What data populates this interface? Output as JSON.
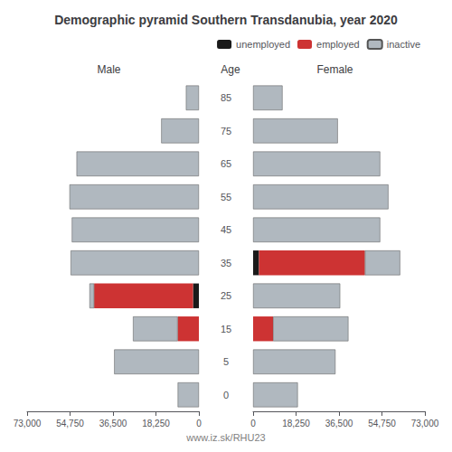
{
  "chart_data": {
    "type": "bar",
    "orientation": "horizontal",
    "stacked": true,
    "grid": false,
    "legend": "upper right",
    "title": "Demographic pyramid Southern Transdanubia, year 2020",
    "ylabel": "Age",
    "annotations": [
      "www.iz.sk/RHU23"
    ],
    "categories": [
      "85",
      "75",
      "65",
      "55",
      "45",
      "35",
      "25",
      "15",
      "5",
      "0"
    ],
    "panels": [
      {
        "xlabel": "Male",
        "xlim": [
          73000,
          0
        ],
        "xticks": [
          73000,
          54750,
          36500,
          18250,
          0
        ],
        "series": [
          {
            "name": "unemployed",
            "color": "#1a1a1a",
            "values": [
              0,
              0,
              0,
              0,
              0,
              0,
              2500,
              0,
              0,
              0
            ]
          },
          {
            "name": "employed",
            "color": "#cd3333",
            "values": [
              0,
              0,
              0,
              0,
              0,
              0,
              42000,
              9000,
              0,
              0
            ]
          },
          {
            "name": "inactive",
            "color": "#b0b8bf",
            "values": [
              5500,
              16000,
              52000,
              55000,
              54000,
              54500,
              2000,
              19000,
              36000,
              9000
            ]
          }
        ]
      },
      {
        "xlabel": "Female",
        "xlim": [
          0,
          73000
        ],
        "xticks": [
          0,
          18250,
          36500,
          54750,
          73000
        ],
        "series": [
          {
            "name": "unemployed",
            "color": "#1a1a1a",
            "values": [
              0,
              0,
              0,
              0,
              0,
              2500,
              0,
              0,
              0,
              0
            ]
          },
          {
            "name": "employed",
            "color": "#cd3333",
            "values": [
              0,
              0,
              0,
              0,
              0,
              45000,
              0,
              8500,
              0,
              0
            ]
          },
          {
            "name": "inactive",
            "color": "#b0b8bf",
            "values": [
              12500,
              36000,
              54000,
              57500,
              54000,
              15000,
              37000,
              32000,
              35000,
              19000
            ]
          }
        ]
      }
    ]
  }
}
